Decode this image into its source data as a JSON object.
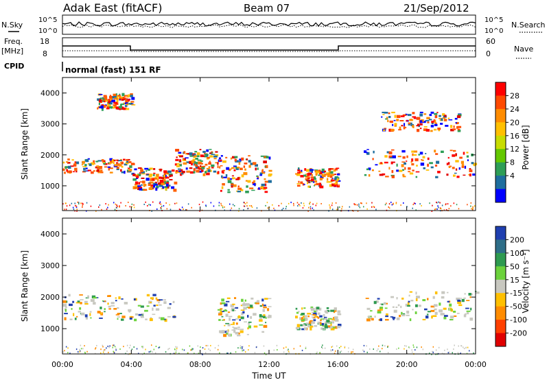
{
  "header": {
    "site": "Adak East (fitACF)",
    "beam": "Beam 07",
    "date": "21/Sep/2012"
  },
  "ancillary": {
    "nsky_label": "N.Sky",
    "nsearch_label": "N.Search",
    "freq_label_top": "Freq.",
    "freq_label_unit": "[MHz]",
    "nave_label": "Nave",
    "cpid_label": "CPID",
    "cpid_value": "normal (fast) 151 RF",
    "noise_ticks": [
      "10^5",
      "10^0"
    ],
    "freq_ticks": [
      "18",
      "8"
    ],
    "nave_ticks": [
      "60",
      "0"
    ]
  },
  "colorbars": {
    "power": {
      "label": "Power [dB]",
      "ticks": [
        "28",
        "24",
        "20",
        "16",
        "12",
        "8",
        "4"
      ],
      "colors": [
        "#ff0000",
        "#ff4a00",
        "#ff8c00",
        "#ffc000",
        "#c8dc00",
        "#64c800",
        "#2e9e57",
        "#1e6e9e",
        "#0000ff"
      ]
    },
    "velocity": {
      "label": "Velocity [m s⁻¹]",
      "ticks": [
        "200",
        "100",
        "50",
        "15",
        "-15",
        "-50",
        "-100",
        "-200"
      ],
      "colors": [
        "#1f3fb0",
        "#2e6e88",
        "#2e9a50",
        "#6cd23c",
        "#c8c8c0",
        "#ffc000",
        "#ff8c00",
        "#ff4000",
        "#e00000"
      ]
    }
  },
  "chart_data": [
    {
      "type": "heatmap",
      "name": "power",
      "ylabel": "Slant Range [km]",
      "xlabel": "",
      "yticks": [
        "1000",
        "2000",
        "3000",
        "4000"
      ],
      "ylim": [
        200,
        4500
      ],
      "xlim": [
        0,
        24
      ],
      "xticks": [
        "00:00",
        "04:00",
        "08:00",
        "12:00",
        "16:00",
        "20:00",
        "00:00"
      ],
      "features": [
        {
          "t": [
            0,
            4
          ],
          "r": [
            1450,
            1900
          ],
          "note": "main echo band, 16-28 dB"
        },
        {
          "t": [
            4,
            6.5
          ],
          "r": [
            900,
            1600
          ],
          "note": "descending main band"
        },
        {
          "t": [
            6.5,
            9
          ],
          "r": [
            1400,
            2200
          ],
          "note": "rising band"
        },
        {
          "t": [
            9,
            12
          ],
          "r": [
            800,
            2000
          ],
          "note": "patchy echoes"
        },
        {
          "t": [
            13.5,
            16
          ],
          "r": [
            1000,
            1600
          ],
          "note": "isolated patches"
        },
        {
          "t": [
            17.5,
            24
          ],
          "r": [
            1300,
            2200
          ],
          "note": "evening main band"
        },
        {
          "t": [
            2,
            4
          ],
          "r": [
            3500,
            4000
          ],
          "note": "far-range patch"
        },
        {
          "t": [
            18.5,
            23
          ],
          "r": [
            2800,
            3400
          ],
          "note": "far-range patch"
        }
      ]
    },
    {
      "type": "heatmap",
      "name": "velocity",
      "ylabel": "Slant Range [km]",
      "xlabel": "Time UT",
      "yticks": [
        "1000",
        "2000",
        "3000",
        "4000"
      ],
      "ylim": [
        200,
        4500
      ],
      "xlim": [
        0,
        24
      ],
      "xticks": [
        "00:00",
        "04:00",
        "08:00",
        "12:00",
        "16:00",
        "20:00",
        "00:00"
      ],
      "features": [
        {
          "t": [
            0,
            6.5
          ],
          "r": [
            1300,
            2100
          ],
          "note": "near-zero velocity (grey)"
        },
        {
          "t": [
            9,
            12
          ],
          "r": [
            800,
            2000
          ],
          "note": "positive velocity (green)"
        },
        {
          "t": [
            13.5,
            16
          ],
          "r": [
            1000,
            1700
          ],
          "note": "positive velocity (green)"
        },
        {
          "t": [
            17.5,
            24
          ],
          "r": [
            1300,
            2200
          ],
          "note": "near-zero velocity (grey)"
        }
      ]
    }
  ]
}
